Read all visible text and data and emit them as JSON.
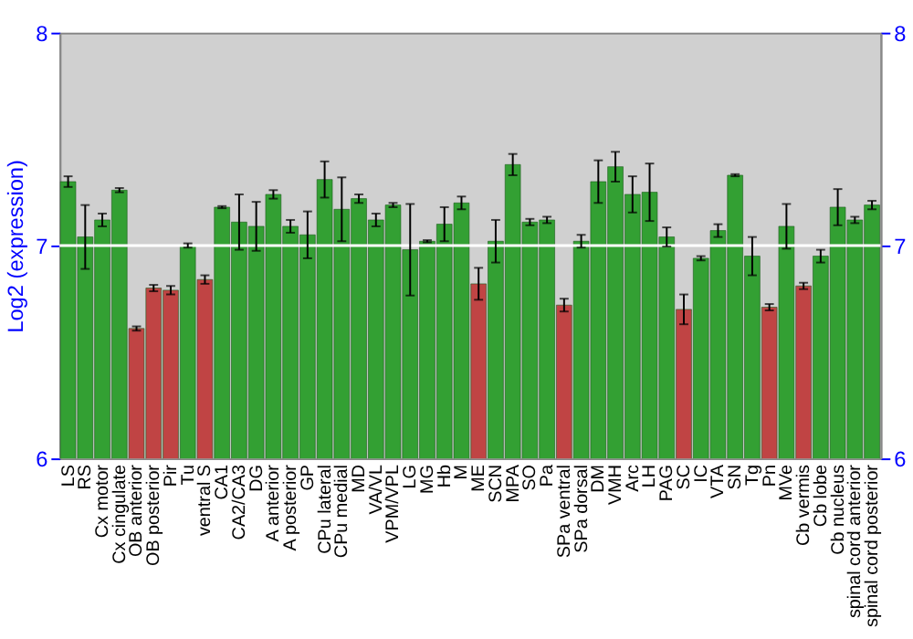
{
  "chart_data": {
    "type": "bar",
    "ylabel": "Log2 (expression)",
    "categories": [
      "LS",
      "RS",
      "Cx motor",
      "Cx cingulate",
      "OB anterior",
      "OB posterior",
      "Pir",
      "Tu",
      "ventral S",
      "CA1",
      "CA2/CA3",
      "DG",
      "A anterior",
      "A posterior",
      "GP",
      "CPu lateral",
      "CPu medial",
      "MD",
      "VA/VL",
      "VPM/VPL",
      "LG",
      "MG",
      "Hb",
      "M",
      "ME",
      "SCN",
      "MPA",
      "SO",
      "Pa",
      "SPa ventral",
      "SPa dorsal",
      "DM",
      "VMH",
      "Arc",
      "LH",
      "PAG",
      "SC",
      "IC",
      "VTA",
      "SN",
      "Tg",
      "Pn",
      "MVe",
      "Cb vermis",
      "Cb lobe",
      "Cb nucleus",
      "spinal cord anterior",
      "spinal cord posterior"
    ],
    "values": [
      7.3,
      7.04,
      7.12,
      7.26,
      6.61,
      6.8,
      6.79,
      7.0,
      6.84,
      7.18,
      7.11,
      7.09,
      7.24,
      7.09,
      7.05,
      7.31,
      7.17,
      7.22,
      7.12,
      7.19,
      6.98,
      7.02,
      7.1,
      7.2,
      6.82,
      7.02,
      7.38,
      7.11,
      7.12,
      6.72,
      7.02,
      7.3,
      7.37,
      7.24,
      7.25,
      7.04,
      6.7,
      6.94,
      7.07,
      7.33,
      6.95,
      6.71,
      7.09,
      6.81,
      6.95,
      7.18,
      7.12,
      7.19
    ],
    "errors": [
      0.025,
      0.15,
      0.03,
      0.01,
      0.01,
      0.015,
      0.02,
      0.01,
      0.02,
      0.005,
      0.13,
      0.115,
      0.02,
      0.03,
      0.11,
      0.085,
      0.15,
      0.02,
      0.03,
      0.01,
      0.215,
      0.005,
      0.08,
      0.03,
      0.075,
      0.1,
      0.05,
      0.015,
      0.015,
      0.03,
      0.03,
      0.1,
      0.07,
      0.085,
      0.135,
      0.045,
      0.07,
      0.01,
      0.03,
      0.005,
      0.09,
      0.015,
      0.105,
      0.015,
      0.03,
      0.085,
      0.015,
      0.02
    ],
    "colors": [
      "#33a033",
      "#33a033",
      "#33a033",
      "#33a033",
      "#c04444",
      "#c04444",
      "#c04444",
      "#33a033",
      "#c04444",
      "#33a033",
      "#33a033",
      "#33a033",
      "#33a033",
      "#33a033",
      "#33a033",
      "#33a033",
      "#33a033",
      "#33a033",
      "#33a033",
      "#33a033",
      "#33a033",
      "#33a033",
      "#33a033",
      "#33a033",
      "#c04444",
      "#33a033",
      "#33a033",
      "#33a033",
      "#33a033",
      "#c04444",
      "#33a033",
      "#33a033",
      "#33a033",
      "#33a033",
      "#33a033",
      "#33a033",
      "#c04444",
      "#33a033",
      "#33a033",
      "#33a033",
      "#33a033",
      "#c04444",
      "#33a033",
      "#c04444",
      "#33a033",
      "#33a033",
      "#33a033",
      "#33a033"
    ],
    "ylim": [
      6,
      8
    ],
    "yticks": [
      6,
      7,
      8
    ],
    "y2lim": [
      6,
      8
    ],
    "y2ticks": [
      6,
      7,
      8
    ],
    "ref_lines": [
      {
        "axis": "y",
        "value": 7,
        "color": "#ffffff"
      }
    ],
    "grid": false
  }
}
